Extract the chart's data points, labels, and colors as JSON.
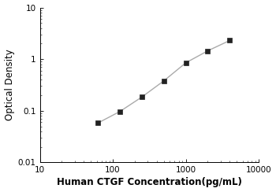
{
  "x_data": [
    62.5,
    125,
    250,
    500,
    1000,
    2000,
    4000
  ],
  "y_data": [
    0.058,
    0.097,
    0.185,
    0.38,
    0.85,
    1.45,
    2.3
  ],
  "xlim": [
    10,
    10000
  ],
  "ylim": [
    0.01,
    10
  ],
  "xlabel": "Human CTGF Concentration(pg/mL)",
  "ylabel": "Optical Density",
  "xticks": [
    10,
    100,
    1000,
    10000
  ],
  "xtick_labels": [
    "10",
    "100",
    "1000",
    "10000"
  ],
  "yticks": [
    0.01,
    0.1,
    1,
    10
  ],
  "ytick_labels": [
    "0.01",
    "0.1",
    "1",
    "10"
  ],
  "line_color": "#aaaaaa",
  "marker_color": "#222222",
  "marker_size": 4.5,
  "line_width": 1.0,
  "xlabel_fontsize": 8.5,
  "ylabel_fontsize": 8.5,
  "tick_fontsize": 7.5,
  "background_color": "#ffffff"
}
